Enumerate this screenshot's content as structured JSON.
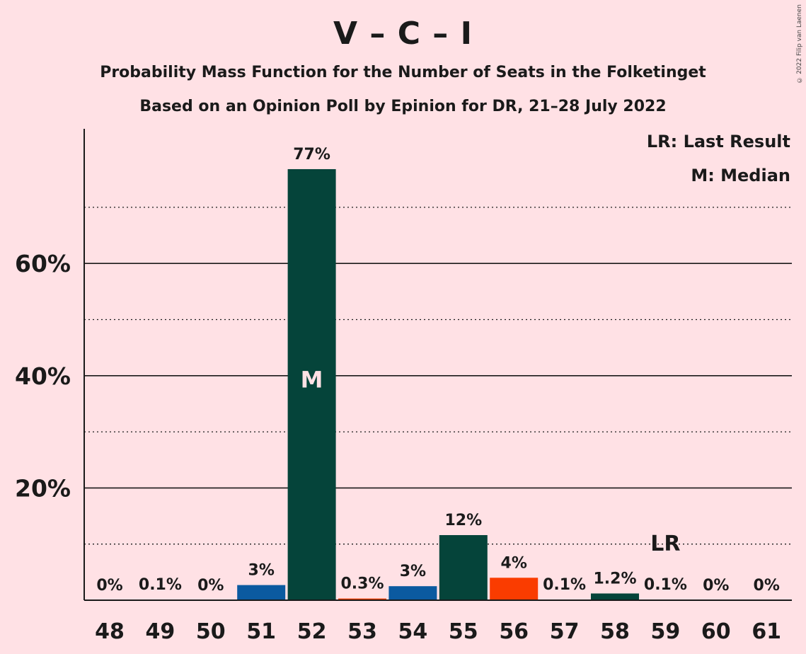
{
  "header": {
    "title": "V – C – I",
    "subtitle1": "Probability Mass Function for the Number of Seats in the Folketinget",
    "subtitle2": "Based on an Opinion Poll by Epinion for DR, 21–28 July 2022",
    "copyright": "© 2022 Filip van Laenen"
  },
  "legend": {
    "lr": "LR: Last Result",
    "m": "M: Median"
  },
  "colors": {
    "background": "#FFE1E5",
    "dark_green": "#05443A",
    "blue": "#0B5AA0",
    "orange": "#FA3C00"
  },
  "chart_data": {
    "type": "bar",
    "title": "V – C – I",
    "xlabel": "",
    "ylabel": "",
    "categories": [
      "48",
      "49",
      "50",
      "51",
      "52",
      "53",
      "54",
      "55",
      "56",
      "57",
      "58",
      "59",
      "60",
      "61"
    ],
    "values": [
      0,
      0.1,
      0,
      2.7,
      76.8,
      0.3,
      2.5,
      11.6,
      4.0,
      0.1,
      1.2,
      0.1,
      0,
      0
    ],
    "labels": [
      "0%",
      "0.1%",
      "0%",
      "3%",
      "77%",
      "0.3%",
      "3%",
      "12%",
      "4%",
      "0.1%",
      "1.2%",
      "0.1%",
      "0%",
      "0%"
    ],
    "bar_colors": [
      "#05443A",
      "#05443A",
      "#05443A",
      "#0B5AA0",
      "#05443A",
      "#FA3C00",
      "#0B5AA0",
      "#05443A",
      "#FA3C00",
      "#05443A",
      "#05443A",
      "#05443A",
      "#05443A",
      "#05443A"
    ],
    "yticks": [
      20,
      40,
      60
    ],
    "ytick_labels": [
      "20%",
      "40%",
      "60%"
    ],
    "minor_gridlines": [
      10,
      30,
      50,
      70
    ],
    "ylim": [
      0,
      83
    ],
    "median": {
      "category": "52",
      "label": "M"
    },
    "last_result": {
      "category": "59",
      "label": "LR"
    },
    "legend_position": "top-right"
  }
}
